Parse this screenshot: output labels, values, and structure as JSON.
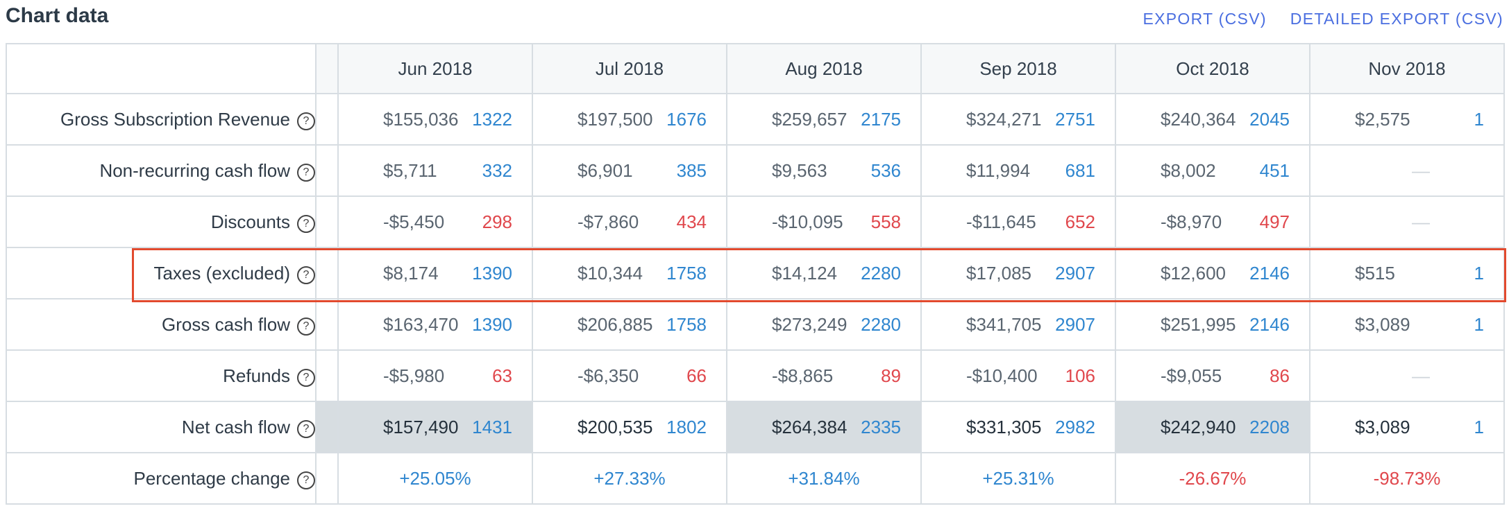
{
  "header": {
    "title": "Chart data",
    "export_csv": "EXPORT (CSV)",
    "detailed_export_csv": "DETAILED EXPORT (CSV)"
  },
  "columns": [
    "Jun 2018",
    "Jul 2018",
    "Aug 2018",
    "Sep 2018",
    "Oct 2018",
    "Nov 2018"
  ],
  "rows": [
    {
      "label": "Gross Subscription Revenue",
      "cells": [
        {
          "amount": "$155,036",
          "count": "1322",
          "neg": false
        },
        {
          "amount": "$197,500",
          "count": "1676",
          "neg": false
        },
        {
          "amount": "$259,657",
          "count": "2175",
          "neg": false
        },
        {
          "amount": "$324,271",
          "count": "2751",
          "neg": false
        },
        {
          "amount": "$240,364",
          "count": "2045",
          "neg": false
        },
        {
          "amount": "$2,575",
          "count": "1",
          "neg": false
        }
      ]
    },
    {
      "label": "Non-recurring cash flow",
      "cells": [
        {
          "amount": "$5,711",
          "count": "332",
          "neg": false
        },
        {
          "amount": "$6,901",
          "count": "385",
          "neg": false
        },
        {
          "amount": "$9,563",
          "count": "536",
          "neg": false
        },
        {
          "amount": "$11,994",
          "count": "681",
          "neg": false
        },
        {
          "amount": "$8,002",
          "count": "451",
          "neg": false
        },
        {
          "dash": "—"
        }
      ]
    },
    {
      "label": "Discounts",
      "cells": [
        {
          "amount": "-$5,450",
          "count": "298",
          "neg": true
        },
        {
          "amount": "-$7,860",
          "count": "434",
          "neg": true
        },
        {
          "amount": "-$10,095",
          "count": "558",
          "neg": true
        },
        {
          "amount": "-$11,645",
          "count": "652",
          "neg": true
        },
        {
          "amount": "-$8,970",
          "count": "497",
          "neg": true
        },
        {
          "dash": "—"
        }
      ]
    },
    {
      "label": "Taxes (excluded)",
      "cells": [
        {
          "amount": "$8,174",
          "count": "1390",
          "neg": false
        },
        {
          "amount": "$10,344",
          "count": "1758",
          "neg": false
        },
        {
          "amount": "$14,124",
          "count": "2280",
          "neg": false
        },
        {
          "amount": "$17,085",
          "count": "2907",
          "neg": false
        },
        {
          "amount": "$12,600",
          "count": "2146",
          "neg": false
        },
        {
          "amount": "$515",
          "count": "1",
          "neg": false
        }
      ]
    },
    {
      "label": "Gross cash flow",
      "cells": [
        {
          "amount": "$163,470",
          "count": "1390",
          "neg": false
        },
        {
          "amount": "$206,885",
          "count": "1758",
          "neg": false
        },
        {
          "amount": "$273,249",
          "count": "2280",
          "neg": false
        },
        {
          "amount": "$341,705",
          "count": "2907",
          "neg": false
        },
        {
          "amount": "$251,995",
          "count": "2146",
          "neg": false
        },
        {
          "amount": "$3,089",
          "count": "1",
          "neg": false
        }
      ]
    },
    {
      "label": "Refunds",
      "cells": [
        {
          "amount": "-$5,980",
          "count": "63",
          "neg": true
        },
        {
          "amount": "-$6,350",
          "count": "66",
          "neg": true
        },
        {
          "amount": "-$8,865",
          "count": "89",
          "neg": true
        },
        {
          "amount": "-$10,400",
          "count": "106",
          "neg": true
        },
        {
          "amount": "-$9,055",
          "count": "86",
          "neg": true
        },
        {
          "dash": "—"
        }
      ]
    },
    {
      "label": "Net cash flow",
      "net": true,
      "cells": [
        {
          "amount": "$157,490",
          "count": "1431",
          "neg": false
        },
        {
          "amount": "$200,535",
          "count": "1802",
          "neg": false
        },
        {
          "amount": "$264,384",
          "count": "2335",
          "neg": false
        },
        {
          "amount": "$331,305",
          "count": "2982",
          "neg": false
        },
        {
          "amount": "$242,940",
          "count": "2208",
          "neg": false
        },
        {
          "amount": "$3,089",
          "count": "1",
          "neg": false
        }
      ]
    },
    {
      "label": "Percentage change",
      "pct": true,
      "cells": [
        {
          "pct": "+25.05%",
          "neg": false
        },
        {
          "pct": "+27.33%",
          "neg": false
        },
        {
          "pct": "+31.84%",
          "neg": false
        },
        {
          "pct": "+25.31%",
          "neg": false
        },
        {
          "pct": "-26.67%",
          "neg": true
        },
        {
          "pct": "-98.73%",
          "neg": true
        }
      ]
    }
  ],
  "help_icon": "?",
  "highlighted_row": "Taxes (excluded)",
  "colors": {
    "positive": "#2f86cf",
    "negative": "#e0474c",
    "highlight": "#e24a2e",
    "link": "#4a6ee0"
  }
}
